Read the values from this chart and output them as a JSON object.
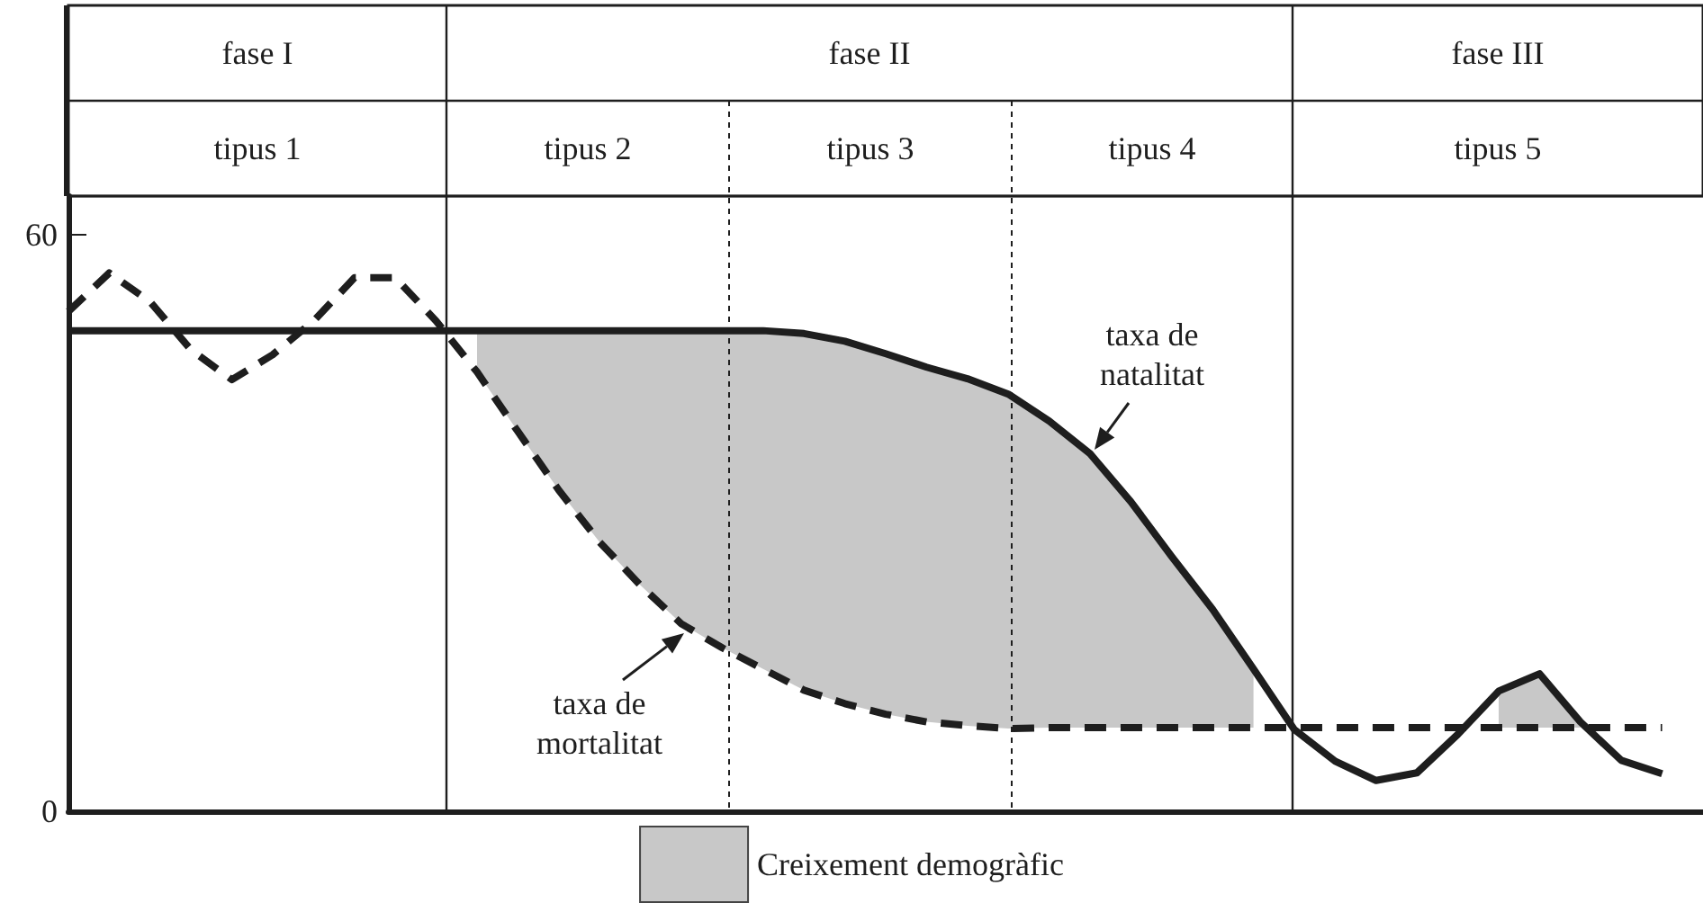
{
  "chart_data": {
    "type": "line",
    "categories": [
      null,
      null,
      null,
      null,
      null,
      null,
      null,
      null,
      null,
      null,
      null,
      null,
      null,
      null,
      null,
      null,
      null,
      null,
      null,
      null,
      null,
      null,
      null,
      null,
      null,
      null,
      null,
      null,
      null,
      null,
      null,
      null,
      null,
      null,
      null,
      null,
      null,
      null,
      null,
      null,
      null
    ],
    "ylim": [
      0,
      64
    ],
    "yticks": [
      0,
      60
    ],
    "tick_labels": "y",
    "grid": false,
    "legend": "bottom",
    "marker": "none",
    "series": [
      {
        "color": "#1e1e1e",
        "line_style": "solid",
        "values": [
          50,
          50,
          50,
          50,
          50,
          50,
          50,
          50,
          50,
          50,
          50,
          50,
          50,
          50,
          50,
          50,
          50,
          50,
          49.7,
          48.9,
          47.6,
          46.2,
          45.0,
          43.4,
          40.6,
          37.2,
          32.2,
          26.5,
          21.0,
          14.8,
          8.5,
          5.2,
          3.2,
          4.0,
          8.0,
          12.5,
          14.3,
          9.3,
          5.3,
          3.9,
          null
        ]
      },
      {
        "color": "#1e1e1e",
        "line_style": "dashed",
        "values": [
          52,
          56,
          53,
          48,
          44.9,
          47.5,
          51,
          55.5,
          55.5,
          51,
          45.7,
          39.5,
          33.4,
          28,
          23.5,
          19.5,
          17,
          14.8,
          12.6,
          11.2,
          10.1,
          9.3,
          8.9,
          8.6,
          8.7,
          8.7,
          8.7,
          8.7,
          8.7,
          8.7,
          8.7,
          8.7,
          8.7,
          8.7,
          8.7,
          8.7,
          8.7,
          8.7,
          8.7,
          8.7,
          null
        ]
      },
      {
        "type": "area",
        "name": "Creixement demogràfic",
        "color": "#c8c8c8",
        "values": [
          null,
          null,
          null,
          null,
          null,
          null,
          null,
          null,
          null,
          null,
          50,
          50,
          50,
          50,
          50,
          50,
          50,
          50,
          49.7,
          48.9,
          47.6,
          46.2,
          45.0,
          43.4,
          40.6,
          37.2,
          32.2,
          26.5,
          21.0,
          14.8,
          null,
          null,
          null,
          null,
          null,
          12.5,
          14.3,
          9.3,
          null,
          null,
          null
        ]
      }
    ],
    "annotations": [
      "fase I",
      "fase II",
      "fase III",
      "tipus 1",
      "tipus 2",
      "tipus 3",
      "tipus 4",
      "tipus 5",
      "taxa de\nnatalitat",
      "taxa de\nmortalitat"
    ]
  }
}
